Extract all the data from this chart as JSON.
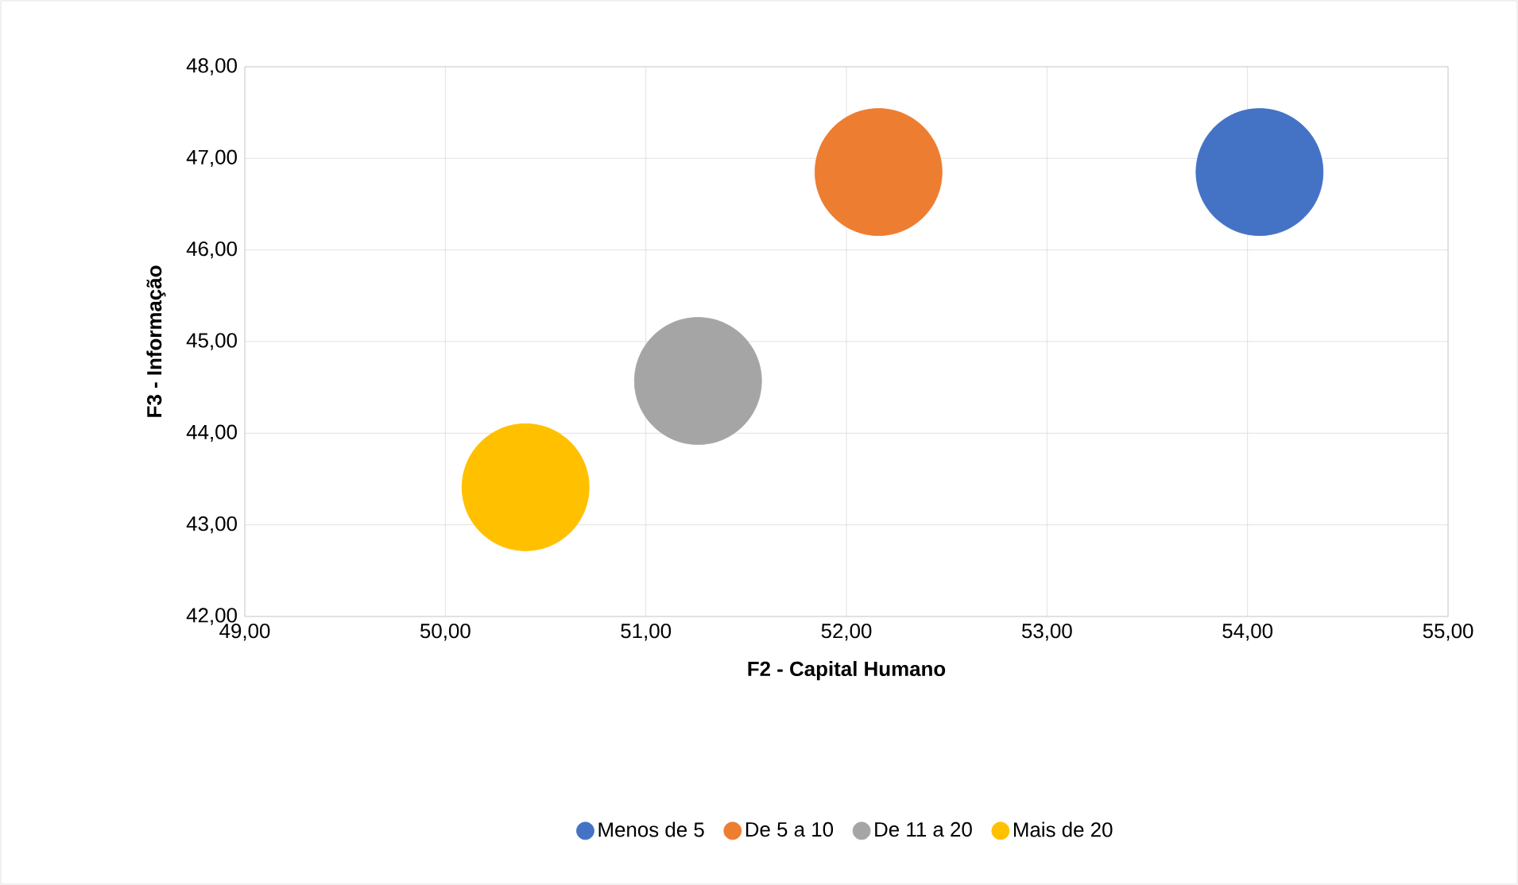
{
  "chart_data": {
    "type": "bubble",
    "xlabel": "F2 - Capital Humano",
    "ylabel": "F3 - Informação",
    "series": [
      {
        "name": "Menos de 5",
        "color": "#4472c4",
        "x": [
          54.06
        ],
        "values": [
          46.85
        ],
        "sizes": [
          1
        ]
      },
      {
        "name": "De 5 a 10",
        "color": "#ed7d31",
        "x": [
          52.16
        ],
        "values": [
          46.85
        ],
        "sizes": [
          1
        ]
      },
      {
        "name": "De 11 a 20",
        "color": "#a5a5a5",
        "x": [
          51.26
        ],
        "values": [
          44.57
        ],
        "sizes": [
          1
        ]
      },
      {
        "name": "Mais de 20",
        "color": "#ffc000",
        "x": [
          50.4
        ],
        "values": [
          43.41
        ],
        "sizes": [
          1
        ]
      }
    ],
    "xlim": [
      49,
      55
    ],
    "ylim": [
      42,
      48
    ],
    "xticks": [
      {
        "value": 49,
        "label": "49,00"
      },
      {
        "value": 50,
        "label": "50,00"
      },
      {
        "value": 51,
        "label": "51,00"
      },
      {
        "value": 52,
        "label": "52,00"
      },
      {
        "value": 53,
        "label": "53,00"
      },
      {
        "value": 54,
        "label": "54,00"
      },
      {
        "value": 55,
        "label": "55,00"
      }
    ],
    "yticks": [
      {
        "value": 42,
        "label": "42,00"
      },
      {
        "value": 43,
        "label": "43,00"
      },
      {
        "value": 44,
        "label": "44,00"
      },
      {
        "value": 45,
        "label": "45,00"
      },
      {
        "value": 46,
        "label": "46,00"
      },
      {
        "value": 47,
        "label": "47,00"
      },
      {
        "value": 48,
        "label": "48,00"
      }
    ],
    "grid": true,
    "legend": "bottom"
  }
}
